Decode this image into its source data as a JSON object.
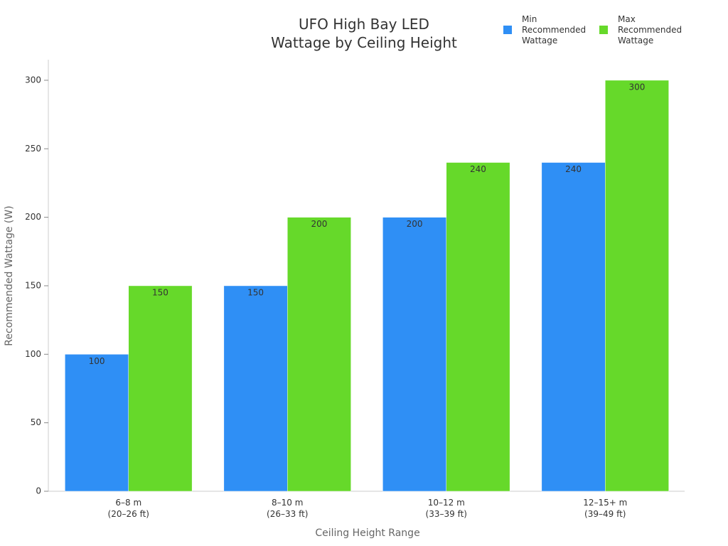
{
  "chart_data": {
    "type": "bar",
    "title": "UFO High Bay LED\nWattage by Ceiling Height",
    "x_label": "Ceiling Height Range",
    "y_label": "Recommended Wattage (W)",
    "categories": [
      "6–8 m\n(20–26 ft)",
      "8–10 m\n(26–33 ft)",
      "10–12 m\n(33–39 ft)",
      "12–15+ m\n(39–49 ft)"
    ],
    "series": [
      {
        "name": "Min Recommended Wattage",
        "color": "#2f8ff5",
        "values": [
          100,
          150,
          200,
          240
        ]
      },
      {
        "name": "Max Recommended Wattage",
        "color": "#66d92a",
        "values": [
          150,
          200,
          240,
          300
        ]
      }
    ],
    "ylim": [
      0,
      315
    ],
    "yticks": [
      0,
      50,
      100,
      150,
      200,
      250,
      300
    ],
    "legend": "top-right",
    "grid": false
  }
}
